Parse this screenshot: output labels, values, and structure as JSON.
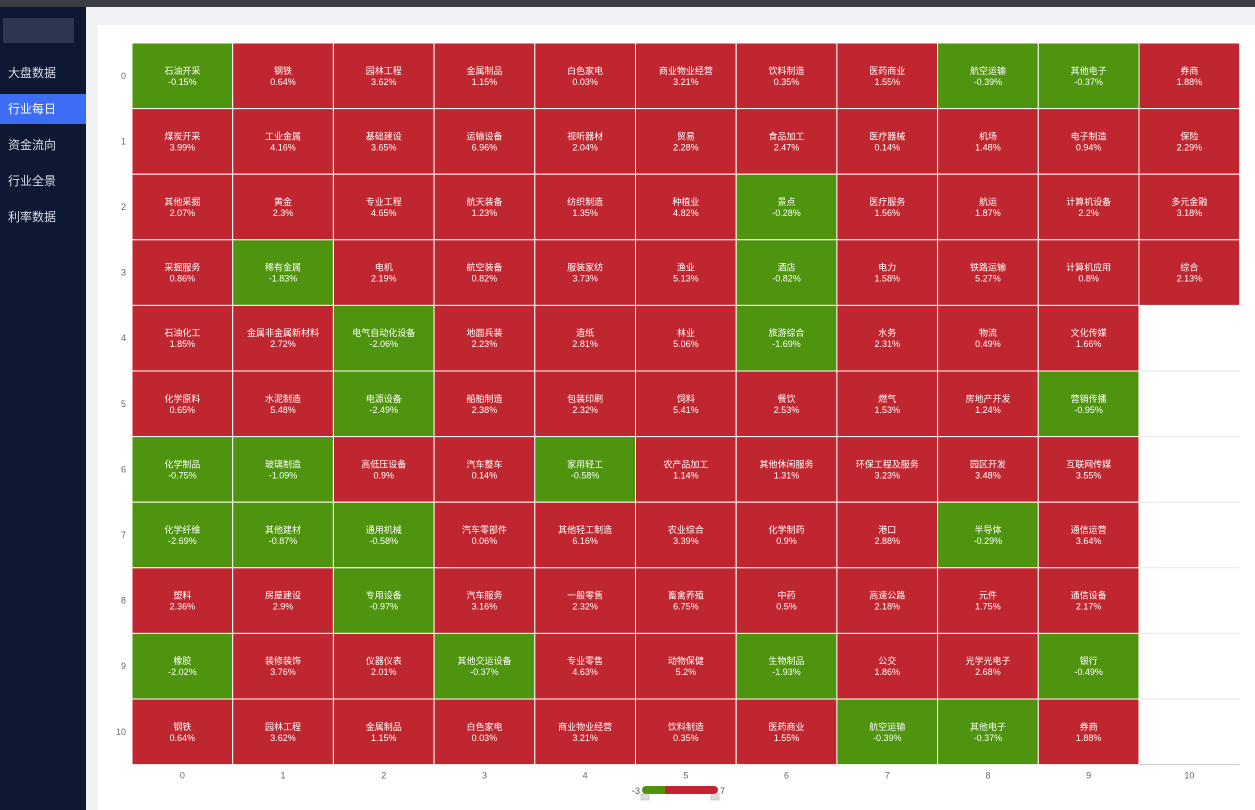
{
  "sidebar": {
    "items": [
      {
        "label": "大盘数据",
        "active": false
      },
      {
        "label": "行业每日",
        "active": true
      },
      {
        "label": "资金流向",
        "active": false
      },
      {
        "label": "行业全景",
        "active": false
      },
      {
        "label": "利率数据",
        "active": false
      }
    ]
  },
  "colors": {
    "up": "#c0262f",
    "down": "#4e940e",
    "accent": "#3d6cf5",
    "sidebar_bg": "#0f1833"
  },
  "chart_data": {
    "type": "heatmap",
    "x_categories": [
      "0",
      "1",
      "2",
      "3",
      "4",
      "5",
      "6",
      "7",
      "8",
      "9",
      "10"
    ],
    "y_categories": [
      "0",
      "1",
      "2",
      "3",
      "4",
      "5",
      "6",
      "7",
      "8",
      "9",
      "10"
    ],
    "cells": [
      {
        "col": 0,
        "row": 0,
        "name": "石油开采",
        "value": "-0.15%"
      },
      {
        "col": 1,
        "row": 0,
        "name": "钢铁",
        "value": "0.64%"
      },
      {
        "col": 2,
        "row": 0,
        "name": "园林工程",
        "value": "3.62%"
      },
      {
        "col": 3,
        "row": 0,
        "name": "金属制品",
        "value": "1.15%"
      },
      {
        "col": 4,
        "row": 0,
        "name": "白色家电",
        "value": "0.03%"
      },
      {
        "col": 5,
        "row": 0,
        "name": "商业物业经营",
        "value": "3.21%"
      },
      {
        "col": 6,
        "row": 0,
        "name": "饮料制造",
        "value": "0.35%"
      },
      {
        "col": 7,
        "row": 0,
        "name": "医药商业",
        "value": "1.55%"
      },
      {
        "col": 8,
        "row": 0,
        "name": "航空运输",
        "value": "-0.39%"
      },
      {
        "col": 9,
        "row": 0,
        "name": "其他电子",
        "value": "-0.37%"
      },
      {
        "col": 10,
        "row": 0,
        "name": "券商",
        "value": "1.88%"
      },
      {
        "col": 0,
        "row": 1,
        "name": "煤炭开采",
        "value": "3.99%"
      },
      {
        "col": 1,
        "row": 1,
        "name": "工业金属",
        "value": "4.16%"
      },
      {
        "col": 2,
        "row": 1,
        "name": "基础建设",
        "value": "3.65%"
      },
      {
        "col": 3,
        "row": 1,
        "name": "运输设备",
        "value": "6.96%"
      },
      {
        "col": 4,
        "row": 1,
        "name": "视听器材",
        "value": "2.04%"
      },
      {
        "col": 5,
        "row": 1,
        "name": "贸易",
        "value": "2.28%"
      },
      {
        "col": 6,
        "row": 1,
        "name": "食品加工",
        "value": "2.47%"
      },
      {
        "col": 7,
        "row": 1,
        "name": "医疗器械",
        "value": "0.14%"
      },
      {
        "col": 8,
        "row": 1,
        "name": "机场",
        "value": "1.48%"
      },
      {
        "col": 9,
        "row": 1,
        "name": "电子制造",
        "value": "0.94%"
      },
      {
        "col": 10,
        "row": 1,
        "name": "保险",
        "value": "2.29%"
      },
      {
        "col": 0,
        "row": 2,
        "name": "其他采掘",
        "value": "2.07%"
      },
      {
        "col": 1,
        "row": 2,
        "name": "黄金",
        "value": "2.3%"
      },
      {
        "col": 2,
        "row": 2,
        "name": "专业工程",
        "value": "4.65%"
      },
      {
        "col": 3,
        "row": 2,
        "name": "航天装备",
        "value": "1.23%"
      },
      {
        "col": 4,
        "row": 2,
        "name": "纺织制造",
        "value": "1.35%"
      },
      {
        "col": 5,
        "row": 2,
        "name": "种植业",
        "value": "4.82%"
      },
      {
        "col": 6,
        "row": 2,
        "name": "景点",
        "value": "-0.28%"
      },
      {
        "col": 7,
        "row": 2,
        "name": "医疗服务",
        "value": "1.56%"
      },
      {
        "col": 8,
        "row": 2,
        "name": "航运",
        "value": "1.87%"
      },
      {
        "col": 9,
        "row": 2,
        "name": "计算机设备",
        "value": "2.2%"
      },
      {
        "col": 10,
        "row": 2,
        "name": "多元金融",
        "value": "3.18%"
      },
      {
        "col": 0,
        "row": 3,
        "name": "采掘服务",
        "value": "0.86%"
      },
      {
        "col": 1,
        "row": 3,
        "name": "稀有金属",
        "value": "-1.83%"
      },
      {
        "col": 2,
        "row": 3,
        "name": "电机",
        "value": "2.19%"
      },
      {
        "col": 3,
        "row": 3,
        "name": "航空装备",
        "value": "0.82%"
      },
      {
        "col": 4,
        "row": 3,
        "name": "服装家纺",
        "value": "3.73%"
      },
      {
        "col": 5,
        "row": 3,
        "name": "渔业",
        "value": "5.13%"
      },
      {
        "col": 6,
        "row": 3,
        "name": "酒店",
        "value": "-0.82%"
      },
      {
        "col": 7,
        "row": 3,
        "name": "电力",
        "value": "1.58%"
      },
      {
        "col": 8,
        "row": 3,
        "name": "铁路运输",
        "value": "5.27%"
      },
      {
        "col": 9,
        "row": 3,
        "name": "计算机应用",
        "value": "0.8%"
      },
      {
        "col": 10,
        "row": 3,
        "name": "综合",
        "value": "2.13%"
      },
      {
        "col": 0,
        "row": 4,
        "name": "石油化工",
        "value": "1.85%"
      },
      {
        "col": 1,
        "row": 4,
        "name": "金属非金属新材料",
        "value": "2.72%"
      },
      {
        "col": 2,
        "row": 4,
        "name": "电气自动化设备",
        "value": "-2.06%"
      },
      {
        "col": 3,
        "row": 4,
        "name": "地面兵装",
        "value": "2.23%"
      },
      {
        "col": 4,
        "row": 4,
        "name": "造纸",
        "value": "2.81%"
      },
      {
        "col": 5,
        "row": 4,
        "name": "林业",
        "value": "5.06%"
      },
      {
        "col": 6,
        "row": 4,
        "name": "旅游综合",
        "value": "-1.69%"
      },
      {
        "col": 7,
        "row": 4,
        "name": "水务",
        "value": "2.31%"
      },
      {
        "col": 8,
        "row": 4,
        "name": "物流",
        "value": "0.49%"
      },
      {
        "col": 9,
        "row": 4,
        "name": "文化传媒",
        "value": "1.66%"
      },
      {
        "col": 0,
        "row": 5,
        "name": "化学原料",
        "value": "0.65%"
      },
      {
        "col": 1,
        "row": 5,
        "name": "水泥制造",
        "value": "5.48%"
      },
      {
        "col": 2,
        "row": 5,
        "name": "电源设备",
        "value": "-2.49%"
      },
      {
        "col": 3,
        "row": 5,
        "name": "船舶制造",
        "value": "2.38%"
      },
      {
        "col": 4,
        "row": 5,
        "name": "包装印刷",
        "value": "2.32%"
      },
      {
        "col": 5,
        "row": 5,
        "name": "饲料",
        "value": "5.41%"
      },
      {
        "col": 6,
        "row": 5,
        "name": "餐饮",
        "value": "2.53%"
      },
      {
        "col": 7,
        "row": 5,
        "name": "燃气",
        "value": "1.53%"
      },
      {
        "col": 8,
        "row": 5,
        "name": "房地产开发",
        "value": "1.24%"
      },
      {
        "col": 9,
        "row": 5,
        "name": "营销传播",
        "value": "-0.95%"
      },
      {
        "col": 0,
        "row": 6,
        "name": "化学制品",
        "value": "-0.75%"
      },
      {
        "col": 1,
        "row": 6,
        "name": "玻璃制造",
        "value": "-1.09%"
      },
      {
        "col": 2,
        "row": 6,
        "name": "高低压设备",
        "value": "0.9%"
      },
      {
        "col": 3,
        "row": 6,
        "name": "汽车整车",
        "value": "0.14%"
      },
      {
        "col": 4,
        "row": 6,
        "name": "家用轻工",
        "value": "-0.58%"
      },
      {
        "col": 5,
        "row": 6,
        "name": "农产品加工",
        "value": "1.14%"
      },
      {
        "col": 6,
        "row": 6,
        "name": "其他休闲服务",
        "value": "1.31%"
      },
      {
        "col": 7,
        "row": 6,
        "name": "环保工程及服务",
        "value": "3.23%"
      },
      {
        "col": 8,
        "row": 6,
        "name": "园区开发",
        "value": "3.48%"
      },
      {
        "col": 9,
        "row": 6,
        "name": "互联网传媒",
        "value": "3.55%"
      },
      {
        "col": 0,
        "row": 7,
        "name": "化学纤维",
        "value": "-2.69%"
      },
      {
        "col": 1,
        "row": 7,
        "name": "其他建材",
        "value": "-0.87%"
      },
      {
        "col": 2,
        "row": 7,
        "name": "通用机械",
        "value": "-0.58%"
      },
      {
        "col": 3,
        "row": 7,
        "name": "汽车零部件",
        "value": "0.06%"
      },
      {
        "col": 4,
        "row": 7,
        "name": "其他轻工制造",
        "value": "6.16%"
      },
      {
        "col": 5,
        "row": 7,
        "name": "农业综合",
        "value": "3.39%"
      },
      {
        "col": 6,
        "row": 7,
        "name": "化学制药",
        "value": "0.9%"
      },
      {
        "col": 7,
        "row": 7,
        "name": "港口",
        "value": "2.88%"
      },
      {
        "col": 8,
        "row": 7,
        "name": "半导体",
        "value": "-0.29%"
      },
      {
        "col": 9,
        "row": 7,
        "name": "通信运营",
        "value": "3.64%"
      },
      {
        "col": 0,
        "row": 8,
        "name": "塑料",
        "value": "2.36%"
      },
      {
        "col": 1,
        "row": 8,
        "name": "房屋建设",
        "value": "2.9%"
      },
      {
        "col": 2,
        "row": 8,
        "name": "专用设备",
        "value": "-0.97%"
      },
      {
        "col": 3,
        "row": 8,
        "name": "汽车服务",
        "value": "3.16%"
      },
      {
        "col": 4,
        "row": 8,
        "name": "一般零售",
        "value": "2.32%"
      },
      {
        "col": 5,
        "row": 8,
        "name": "畜禽养殖",
        "value": "6.75%"
      },
      {
        "col": 6,
        "row": 8,
        "name": "中药",
        "value": "0.5%"
      },
      {
        "col": 7,
        "row": 8,
        "name": "高速公路",
        "value": "2.18%"
      },
      {
        "col": 8,
        "row": 8,
        "name": "元件",
        "value": "1.75%"
      },
      {
        "col": 9,
        "row": 8,
        "name": "通信设备",
        "value": "2.17%"
      },
      {
        "col": 0,
        "row": 9,
        "name": "橡胶",
        "value": "-2.02%"
      },
      {
        "col": 1,
        "row": 9,
        "name": "装修装饰",
        "value": "3.76%"
      },
      {
        "col": 2,
        "row": 9,
        "name": "仪器仪表",
        "value": "2.01%"
      },
      {
        "col": 3,
        "row": 9,
        "name": "其他交运设备",
        "value": "-0.37%"
      },
      {
        "col": 4,
        "row": 9,
        "name": "专业零售",
        "value": "4.63%"
      },
      {
        "col": 5,
        "row": 9,
        "name": "动物保健",
        "value": "5.2%"
      },
      {
        "col": 6,
        "row": 9,
        "name": "生物制品",
        "value": "-1.93%"
      },
      {
        "col": 7,
        "row": 9,
        "name": "公交",
        "value": "1.86%"
      },
      {
        "col": 8,
        "row": 9,
        "name": "光学光电子",
        "value": "2.68%"
      },
      {
        "col": 9,
        "row": 9,
        "name": "银行",
        "value": "-0.49%"
      },
      {
        "col": 0,
        "row": 10,
        "name": "钢铁",
        "value": "0.64%"
      },
      {
        "col": 1,
        "row": 10,
        "name": "园林工程",
        "value": "3.62%"
      },
      {
        "col": 2,
        "row": 10,
        "name": "金属制品",
        "value": "1.15%"
      },
      {
        "col": 3,
        "row": 10,
        "name": "白色家电",
        "value": "0.03%"
      },
      {
        "col": 4,
        "row": 10,
        "name": "商业物业经营",
        "value": "3.21%"
      },
      {
        "col": 5,
        "row": 10,
        "name": "饮料制造",
        "value": "0.35%"
      },
      {
        "col": 6,
        "row": 10,
        "name": "医药商业",
        "value": "1.55%"
      },
      {
        "col": 7,
        "row": 10,
        "name": "航空运输",
        "value": "-0.39%"
      },
      {
        "col": 8,
        "row": 10,
        "name": "其他电子",
        "value": "-0.37%"
      },
      {
        "col": 9,
        "row": 10,
        "name": "券商",
        "value": "1.88%"
      }
    ],
    "visual_map": {
      "min": -3,
      "max": 7,
      "min_label": "-3",
      "max_label": "7"
    },
    "grid": true,
    "legend_position": "bottom-center"
  }
}
